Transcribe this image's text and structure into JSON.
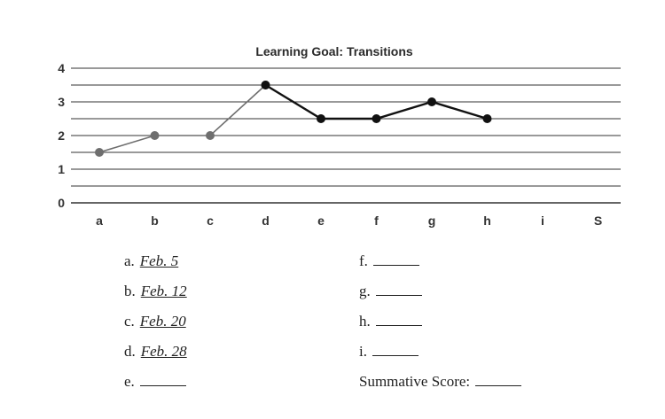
{
  "chart_data": {
    "type": "line",
    "title": "Learning Goal: Transitions",
    "categories": [
      "a",
      "b",
      "c",
      "d",
      "e",
      "f",
      "g",
      "h",
      "i",
      "S"
    ],
    "yticks": [
      0,
      1,
      2,
      3,
      4
    ],
    "ylim": [
      0,
      4
    ],
    "grid": "horizontal every 0.5",
    "series": [
      {
        "color": "#6e6e6e",
        "points": [
          {
            "x": "a",
            "y": 1.5
          },
          {
            "x": "b",
            "y": 2
          },
          {
            "x": "c",
            "y": 2
          },
          {
            "x": "d",
            "y": 3.5
          }
        ]
      },
      {
        "color": "#111111",
        "points": [
          {
            "x": "d",
            "y": 3.5
          },
          {
            "x": "e",
            "y": 2.5
          },
          {
            "x": "f",
            "y": 2.5
          },
          {
            "x": "g",
            "y": 3
          },
          {
            "x": "h",
            "y": 2.5
          }
        ]
      }
    ]
  },
  "legend": {
    "left": [
      {
        "label": "a.",
        "value": "Feb. 5"
      },
      {
        "label": "b.",
        "value": "Feb. 12"
      },
      {
        "label": "c.",
        "value": "Feb. 20"
      },
      {
        "label": "d.",
        "value": "Feb. 28"
      },
      {
        "label": "e.",
        "value": ""
      }
    ],
    "right": [
      {
        "label": "f.",
        "value": ""
      },
      {
        "label": "g.",
        "value": ""
      },
      {
        "label": "h.",
        "value": ""
      },
      {
        "label": "i.",
        "value": ""
      },
      {
        "label": "Summative Score:",
        "value": ""
      }
    ]
  },
  "colors": {
    "grid": "#333333",
    "early_series": "#6e6e6e",
    "late_series": "#111111"
  }
}
